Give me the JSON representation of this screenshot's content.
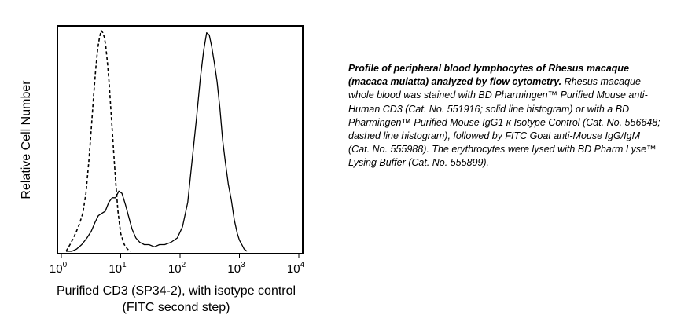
{
  "chart_data": {
    "type": "line",
    "title": "",
    "xlabel_lines": [
      "Purified CD3 (SP34-2), with isotype control",
      "(FITC second step)"
    ],
    "ylabel": "Relative Cell Number",
    "x_scale": "log",
    "xlim": [
      1,
      10000
    ],
    "ylim": [
      0,
      100
    ],
    "grid": false,
    "legend": "none",
    "x_ticks": [
      {
        "base": "10",
        "exp": "0",
        "value": 1
      },
      {
        "base": "10",
        "exp": "1",
        "value": 10
      },
      {
        "base": "10",
        "exp": "2",
        "value": 100
      },
      {
        "base": "10",
        "exp": "3",
        "value": 1000
      },
      {
        "base": "10",
        "exp": "4",
        "value": 10000
      }
    ],
    "series": [
      {
        "style": "solid",
        "x": [
          1.2,
          1.5,
          1.8,
          2.2,
          2.7,
          3.2,
          3.7,
          4.2,
          4.8,
          5.5,
          6.3,
          7.2,
          8.2,
          9.3,
          10.5,
          12,
          13.5,
          15.5,
          18,
          21,
          25,
          30,
          37,
          45,
          55,
          70,
          90,
          110,
          135,
          160,
          190,
          220,
          250,
          280,
          310,
          340,
          380,
          420,
          470,
          520,
          580,
          650,
          730,
          820,
          920,
          1000,
          1100,
          1200,
          1350
        ],
        "y": [
          0,
          0,
          1,
          3,
          6,
          9,
          13,
          16,
          17,
          18,
          22,
          24,
          24,
          27,
          26,
          21,
          16,
          10,
          6,
          4,
          3,
          3,
          2,
          3,
          3,
          4,
          6,
          11,
          22,
          41,
          60,
          78,
          90,
          98,
          97,
          92,
          84,
          76,
          64,
          50,
          40,
          30,
          23,
          14,
          8,
          5,
          3,
          1,
          0
        ]
      },
      {
        "style": "dashed",
        "x": [
          1.2,
          1.4,
          1.6,
          1.8,
          2.0,
          2.3,
          2.6,
          2.9,
          3.2,
          3.5,
          3.8,
          4.1,
          4.4,
          4.7,
          5.0,
          5.3,
          5.6,
          6.0,
          6.4,
          6.8,
          7.3,
          7.8,
          8.4,
          9.0,
          10,
          11.5,
          13,
          15
        ],
        "y": [
          0,
          3,
          6,
          9,
          12,
          17,
          26,
          40,
          55,
          70,
          82,
          91,
          96,
          99,
          98,
          96,
          92,
          84,
          75,
          64,
          52,
          40,
          28,
          18,
          8,
          3,
          1,
          0
        ]
      }
    ]
  },
  "caption": {
    "bold": "Profile of peripheral blood lymphocytes of Rhesus macaque (macaca mulatta) analyzed by flow cytometry.",
    "body": "Rhesus macaque whole blood was stained with BD Pharmingen™ Purified Mouse anti-Human CD3 (Cat. No. 551916; solid line histogram) or with a BD Pharmingen™ Purified Mouse IgG1 κ Isotype Control (Cat. No. 556648; dashed line histogram), followed by FITC Goat anti-Mouse IgG/IgM (Cat. No. 555988). The erythrocytes were lysed with BD Pharm Lyse™ Lysing Buffer (Cat. No. 555899)."
  }
}
